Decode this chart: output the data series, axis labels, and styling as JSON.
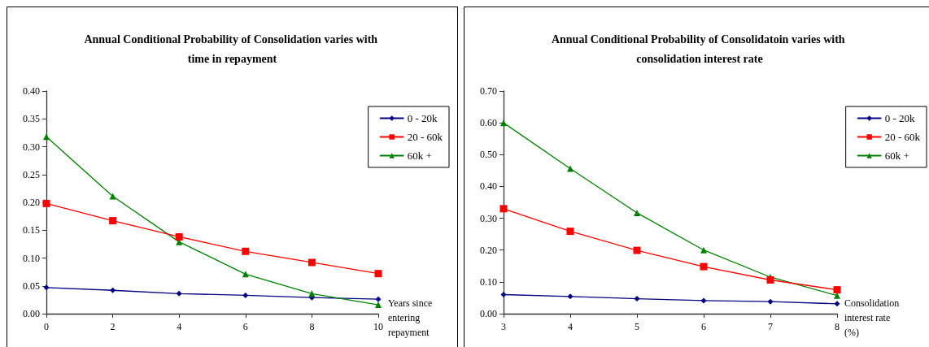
{
  "chart_data": [
    {
      "type": "line",
      "title": "Annual Conditional Probability of Consolidation varies with time in repayment",
      "xlabel": "Years since entering repayment",
      "x": [
        0,
        2,
        4,
        6,
        8,
        10
      ],
      "xlim": [
        0,
        10
      ],
      "xticks": [
        0,
        2,
        4,
        6,
        8,
        10
      ],
      "ylim": [
        0,
        0.4
      ],
      "yticks": [
        {
          "value": 0,
          "label": "0.00"
        },
        {
          "value": 0.05,
          "label": "0.05"
        },
        {
          "value": 0.1,
          "label": "0.10"
        },
        {
          "value": 0.15,
          "label": "0.15"
        },
        {
          "value": 0.2,
          "label": "0.20"
        },
        {
          "value": 0.25,
          "label": "0.25"
        },
        {
          "value": 0.3,
          "label": "0.30"
        },
        {
          "value": 0.35,
          "label": "0.35"
        },
        {
          "value": 0.4,
          "label": "0.40"
        }
      ],
      "grid": false,
      "legend": "top right",
      "line_style": "solid",
      "series": [
        {
          "name": "0 - 20k",
          "color": "#000080",
          "marker": "diamond",
          "values": [
            0.047,
            0.042,
            0.036,
            0.033,
            0.029,
            0.026
          ]
        },
        {
          "name": "20 - 60k",
          "color": "#ff0000",
          "marker": "square",
          "values": [
            0.198,
            0.167,
            0.138,
            0.112,
            0.092,
            0.072
          ]
        },
        {
          "name": "60k +",
          "color": "#008000",
          "marker": "triangle",
          "values": [
            0.318,
            0.211,
            0.129,
            0.071,
            0.036,
            0.016
          ]
        }
      ]
    },
    {
      "type": "line",
      "title": "Annual Conditional Probability of Consolidatoin varies with consolidation interest rate",
      "xlabel": "Consolidation interest rate (%)",
      "x": [
        3,
        4,
        5,
        6,
        7,
        8
      ],
      "xlim": [
        3,
        8
      ],
      "xticks": [
        3,
        4,
        5,
        6,
        7,
        8
      ],
      "ylim": [
        0,
        0.7
      ],
      "yticks": [
        {
          "value": 0,
          "label": "0.00"
        },
        {
          "value": 0.1,
          "label": "0.10"
        },
        {
          "value": 0.2,
          "label": "0.20"
        },
        {
          "value": 0.3,
          "label": "0.30"
        },
        {
          "value": 0.4,
          "label": "0.40"
        },
        {
          "value": 0.5,
          "label": "0.50"
        },
        {
          "value": 0.6,
          "label": "0.60"
        },
        {
          "value": 0.7,
          "label": "0.70"
        }
      ],
      "grid": false,
      "legend": "top right",
      "line_style": "solid",
      "series": [
        {
          "name": "0 - 20k",
          "color": "#000080",
          "marker": "diamond",
          "values": [
            0.06,
            0.054,
            0.047,
            0.041,
            0.038,
            0.031
          ]
        },
        {
          "name": "20 - 60k",
          "color": "#ff0000",
          "marker": "square",
          "values": [
            0.33,
            0.259,
            0.199,
            0.148,
            0.106,
            0.075
          ]
        },
        {
          "name": "60k +",
          "color": "#008000",
          "marker": "triangle",
          "values": [
            0.6,
            0.456,
            0.317,
            0.2,
            0.115,
            0.057
          ]
        }
      ]
    }
  ]
}
